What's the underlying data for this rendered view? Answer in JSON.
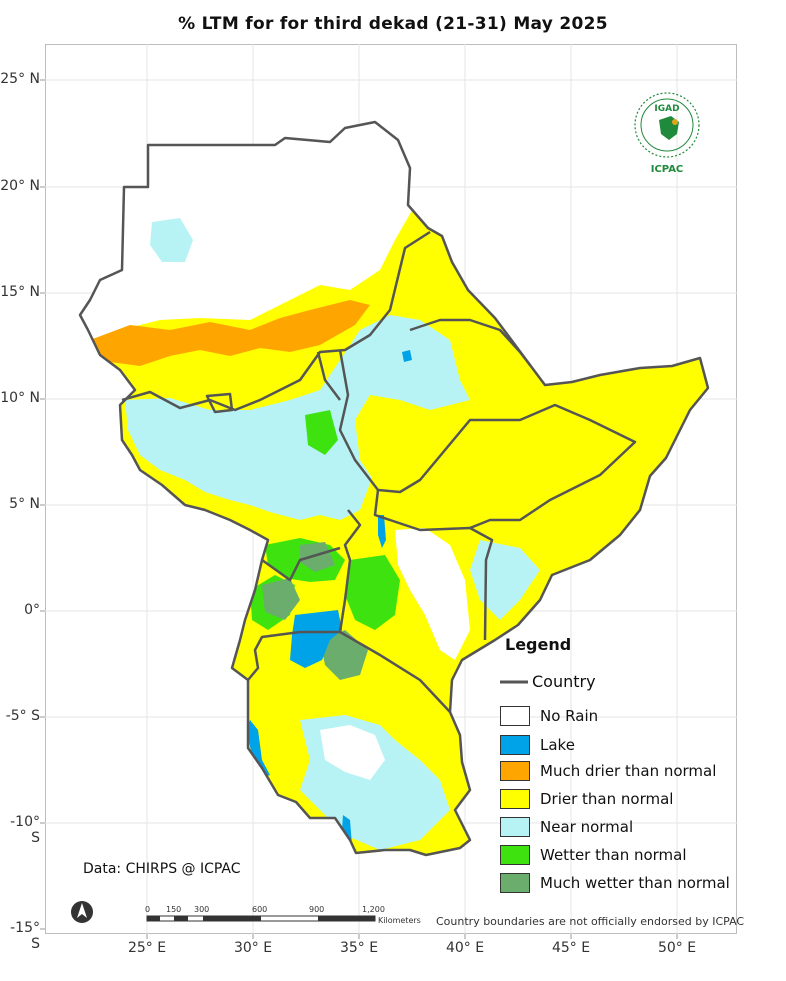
{
  "title": "% LTM  for   for   third dekad (21-31)  May 2025",
  "latitude_labels": [
    "25° N",
    "20° N",
    "15° N",
    "10° N",
    "5° N",
    "0°",
    "-5° S",
    "-10° S",
    "-15° S"
  ],
  "longitude_labels": [
    "25° E",
    "30° E",
    "35° E",
    "40° E",
    "45° E",
    "50° E"
  ],
  "legend": {
    "title": "Legend",
    "country_label": "Country",
    "items": [
      {
        "label": "No Rain",
        "color": "#ffffff"
      },
      {
        "label": "Lake",
        "color": "#00a2e8"
      },
      {
        "label": "Much drier than normal",
        "color": "#ffa500"
      },
      {
        "label": "Drier than normal",
        "color": "#ffff00"
      },
      {
        "label": "Near normal",
        "color": "#b7f3f5"
      },
      {
        "label": "Wetter than normal",
        "color": "#3ee30f"
      },
      {
        "label": "Much wetter than normal",
        "color": "#6aad6d"
      }
    ]
  },
  "logo": {
    "top_text": "IGAD",
    "bottom_text": "ICPAC",
    "color": "#1f8a3b"
  },
  "scalebar": {
    "ticks": [
      "0",
      "150",
      "300",
      "600",
      "900",
      "1,200"
    ],
    "unit": "Kilometers"
  },
  "data_source": "Data: CHIRPS @ ICPAC",
  "disclaimer": "Country boundaries are not officially endorsed by ICPAC",
  "north_arrow_icon": "north-arrow-icon"
}
